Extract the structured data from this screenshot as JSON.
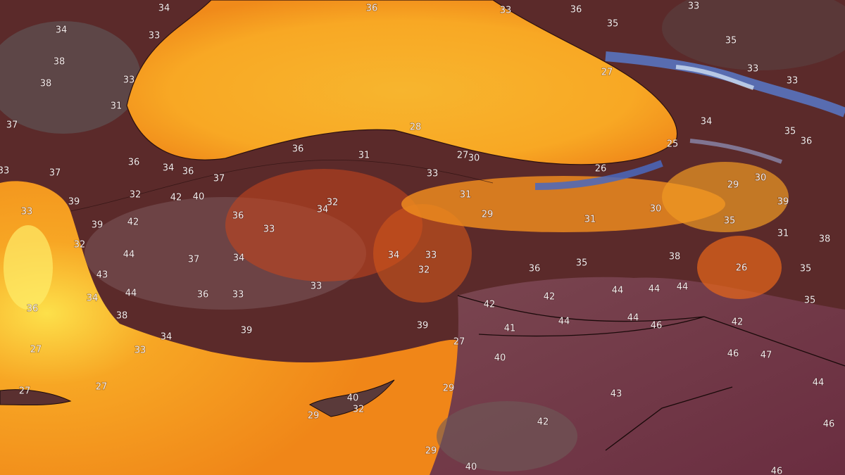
{
  "map": {
    "temperature_labels": [
      34,
      36,
      33,
      36,
      33,
      34,
      33,
      35,
      35,
      38,
      27,
      33,
      33,
      38,
      33,
      31,
      37,
      34,
      35,
      28,
      36,
      36,
      31,
      27,
      30,
      25,
      36,
      34,
      36,
      37,
      33,
      26,
      33,
      37,
      32,
      42,
      40,
      31,
      29,
      30,
      39,
      32,
      34,
      29,
      30,
      39,
      33,
      39,
      42,
      36,
      33,
      31,
      35,
      32,
      31,
      38,
      44,
      37,
      34,
      34,
      33,
      38,
      43,
      32,
      36,
      35,
      35,
      26,
      44,
      36,
      33,
      33,
      44,
      44,
      44,
      34,
      42,
      42,
      35,
      36,
      38,
      44,
      44,
      46,
      42,
      39,
      41,
      39,
      34,
      27,
      27,
      33,
      46,
      47,
      40,
      29,
      43,
      44,
      27,
      27,
      40,
      32,
      42,
      46,
      29,
      29,
      40,
      46
    ]
  }
}
